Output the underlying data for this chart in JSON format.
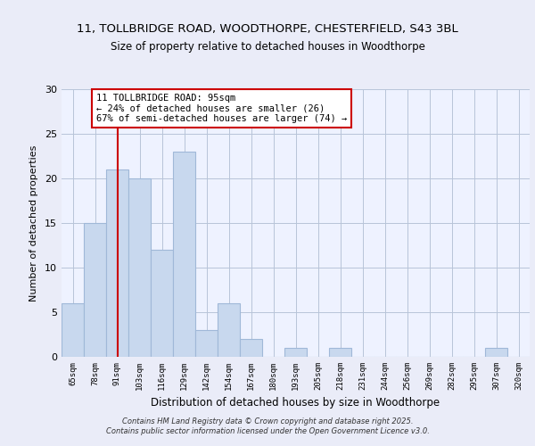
{
  "title_line1": "11, TOLLBRIDGE ROAD, WOODTHORPE, CHESTERFIELD, S43 3BL",
  "title_line2": "Size of property relative to detached houses in Woodthorpe",
  "xlabel": "Distribution of detached houses by size in Woodthorpe",
  "ylabel": "Number of detached properties",
  "bin_labels": [
    "65sqm",
    "78sqm",
    "91sqm",
    "103sqm",
    "116sqm",
    "129sqm",
    "142sqm",
    "154sqm",
    "167sqm",
    "180sqm",
    "193sqm",
    "205sqm",
    "218sqm",
    "231sqm",
    "244sqm",
    "256sqm",
    "269sqm",
    "282sqm",
    "295sqm",
    "307sqm",
    "320sqm"
  ],
  "bar_heights": [
    6,
    15,
    21,
    20,
    12,
    23,
    3,
    6,
    2,
    0,
    1,
    0,
    1,
    0,
    0,
    0,
    0,
    0,
    0,
    1,
    0
  ],
  "bar_color": "#c8d8ee",
  "bar_edge_color": "#a0b8d8",
  "vline_x_idx": 2,
  "vline_color": "#cc0000",
  "annotation_line1": "11 TOLLBRIDGE ROAD: 95sqm",
  "annotation_line2": "← 24% of detached houses are smaller (26)",
  "annotation_line3": "67% of semi-detached houses are larger (74) →",
  "annotation_box_color": "#ffffff",
  "annotation_box_edge": "#cc0000",
  "ylim": [
    0,
    30
  ],
  "yticks": [
    0,
    5,
    10,
    15,
    20,
    25,
    30
  ],
  "footer_text": "Contains HM Land Registry data © Crown copyright and database right 2025.\nContains public sector information licensed under the Open Government Licence v3.0.",
  "bg_color": "#eaecf8",
  "plot_bg_color": "#eef2ff",
  "grid_color": "#b8c4d8"
}
